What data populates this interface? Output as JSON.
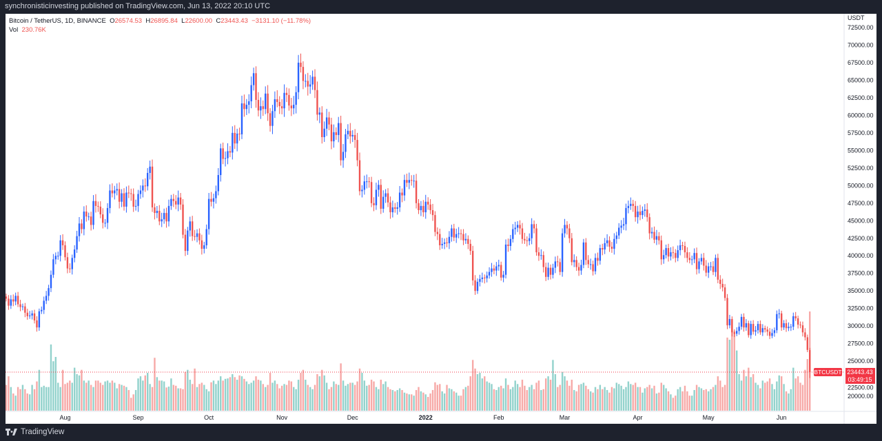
{
  "header": {
    "published": "synchronisticinvesting published on TradingView.com, Jun 13, 2022 20:10 UTC"
  },
  "legend": {
    "symbol": "Bitcoin / TetherUS, 1D, BINANCE",
    "o_label": "O",
    "open": "26574.53",
    "h_label": "H",
    "high": "26895.84",
    "l_label": "L",
    "low": "22600.00",
    "c_label": "C",
    "close": "23443.43",
    "change": "−3131.10 (−11.78%)",
    "vol_label": "Vol",
    "vol": "230.76K"
  },
  "price_axis": {
    "currency": "USDT"
  },
  "last_price": {
    "symbol": "BTCUSDT",
    "price": "23443.43",
    "countdown": "03:49:15"
  },
  "footer": {
    "brand": "TradingView"
  },
  "colors": {
    "up": "#2962ff",
    "down": "#ef5350",
    "vol_up": "#26a69a",
    "vol_down": "#ef5350",
    "last": "#f23645"
  },
  "chart_data": {
    "type": "candlestick",
    "title": "Bitcoin / TetherUS, 1D, BINANCE",
    "start_date": "2021-07-07",
    "end_date": "2022-06-13",
    "ylim": [
      17500,
      73500
    ],
    "yticks": [
      20000,
      22500,
      25000,
      27500,
      30000,
      32500,
      35000,
      37500,
      40000,
      42500,
      45000,
      47500,
      50000,
      52500,
      55000,
      57500,
      60000,
      62500,
      65000,
      67500,
      70000,
      72500
    ],
    "xticks": [
      {
        "label": "Aug",
        "index": 25
      },
      {
        "label": "Sep",
        "index": 56
      },
      {
        "label": "Oct",
        "index": 86
      },
      {
        "label": "Nov",
        "index": 117
      },
      {
        "label": "Dec",
        "index": 147
      },
      {
        "label": "2022",
        "index": 178
      },
      {
        "label": "Feb",
        "index": 209
      },
      {
        "label": "Mar",
        "index": 237
      },
      {
        "label": "Apr",
        "index": 268
      },
      {
        "label": "May",
        "index": 298
      },
      {
        "label": "Jun",
        "index": 329
      }
    ],
    "first_open_k": 34.2,
    "last_candle": {
      "open": 26574.53,
      "high": 26895.84,
      "low": 22600.0,
      "close": 23443.43
    },
    "close_k": [
      33.9,
      32.9,
      33.8,
      33.5,
      34.3,
      33.1,
      32.7,
      32.8,
      31.9,
      31.4,
      31.5,
      31.8,
      30.8,
      29.8,
      32.1,
      32.3,
      33.6,
      34.3,
      35.4,
      37.3,
      39.5,
      40.0,
      40.0,
      42.2,
      41.5,
      39.8,
      38.2,
      38.1,
      39.7,
      40.9,
      42.8,
      44.6,
      43.8,
      46.3,
      45.6,
      45.6,
      44.4,
      47.8,
      47.1,
      47.0,
      45.9,
      44.7,
      44.7,
      46.8,
      49.3,
      48.9,
      49.3,
      49.5,
      47.7,
      48.9,
      47.0,
      49.0,
      48.9,
      48.8,
      47.0,
      47.1,
      48.8,
      49.3,
      50.0,
      49.9,
      51.8,
      52.7,
      46.9,
      46.1,
      46.4,
      44.9,
      45.2,
      46.1,
      44.9,
      47.1,
      48.1,
      47.8,
      47.3,
      48.3,
      47.3,
      43.0,
      40.7,
      43.6,
      44.9,
      42.8,
      42.7,
      43.2,
      42.2,
      41.0,
      41.5,
      43.8,
      48.1,
      47.7,
      48.2,
      49.2,
      51.5,
      55.3,
      53.8,
      53.9,
      54.9,
      54.7,
      57.5,
      56.0,
      57.4,
      57.3,
      61.7,
      60.9,
      61.5,
      62.0,
      64.3,
      66.0,
      62.2,
      60.7,
      61.3,
      60.9,
      63.1,
      60.3,
      58.5,
      60.6,
      62.3,
      61.9,
      61.3,
      61.0,
      63.2,
      62.9,
      61.4,
      61.0,
      61.5,
      63.3,
      67.5,
      66.9,
      64.9,
      64.9,
      64.1,
      64.4,
      65.5,
      63.6,
      60.1,
      60.4,
      56.9,
      58.1,
      59.7,
      58.7,
      56.3,
      57.6,
      57.2,
      58.9,
      53.6,
      54.8,
      57.3,
      57.8,
      57.0,
      57.2,
      56.5,
      53.6,
      49.2,
      49.4,
      50.6,
      50.6,
      50.5,
      47.5,
      47.2,
      49.4,
      50.1,
      46.7,
      48.4,
      48.9,
      47.6,
      46.2,
      46.9,
      46.7,
      46.9,
      49.0,
      48.6,
      50.8,
      50.4,
      50.8,
      50.7,
      50.7,
      47.5,
      46.5,
      47.1,
      46.2,
      47.7,
      47.3,
      46.5,
      45.8,
      43.4,
      43.1,
      41.5,
      41.7,
      41.9,
      41.8,
      42.7,
      43.9,
      42.6,
      43.1,
      43.2,
      43.1,
      42.2,
      42.4,
      41.7,
      40.7,
      36.5,
      35.0,
      36.3,
      36.7,
      36.9,
      36.8,
      37.2,
      37.7,
      38.2,
      37.9,
      38.5,
      38.7,
      36.9,
      37.3,
      41.6,
      41.4,
      42.4,
      43.8,
      44.0,
      44.4,
      43.9,
      42.4,
      42.2,
      42.1,
      42.5,
      44.5,
      43.9,
      40.5,
      40.0,
      40.1,
      38.4,
      37.0,
      38.3,
      37.3,
      38.3,
      39.2,
      39.1,
      37.7,
      43.2,
      44.4,
      43.9,
      42.5,
      39.1,
      39.4,
      38.4,
      37.9,
      38.7,
      41.9,
      39.4,
      38.8,
      38.8,
      37.8,
      39.7,
      39.3,
      41.1,
      40.9,
      41.8,
      42.2,
      41.3,
      41.0,
      42.4,
      42.9,
      44.0,
      44.3,
      44.5,
      46.8,
      47.1,
      47.4,
      47.1,
      45.5,
      46.3,
      45.8,
      46.4,
      46.6,
      45.5,
      43.2,
      43.4,
      42.3,
      42.8,
      42.2,
      39.5,
      40.1,
      41.1,
      39.9,
      40.5,
      40.4,
      39.7,
      40.8,
      41.5,
      41.4,
      40.5,
      39.7,
      39.4,
      39.5,
      40.4,
      38.1,
      39.2,
      39.7,
      38.6,
      37.6,
      38.5,
      38.5,
      37.7,
      39.7,
      36.6,
      36.0,
      35.5,
      34.0,
      30.1,
      31.0,
      29.1,
      28.9,
      29.3,
      29.9,
      31.3,
      29.8,
      30.4,
      28.7,
      30.3,
      29.2,
      29.4,
      30.3,
      29.1,
      29.7,
      29.5,
      29.2,
      28.6,
      29.0,
      29.4,
      31.7,
      31.8,
      29.8,
      30.4,
      29.7,
      29.9,
      29.9,
      31.4,
      31.1,
      30.2,
      30.1,
      29.1,
      28.4,
      26.6,
      23.4
    ],
    "volume_k": [
      60,
      80,
      55,
      40,
      35,
      55,
      50,
      60,
      50,
      40,
      38,
      60,
      50,
      68,
      95,
      55,
      58,
      55,
      55,
      154,
      115,
      125,
      65,
      55,
      95,
      62,
      65,
      70,
      65,
      100,
      85,
      82,
      95,
      70,
      65,
      70,
      60,
      55,
      70,
      70,
      65,
      60,
      68,
      70,
      65,
      70,
      65,
      52,
      62,
      60,
      58,
      55,
      48,
      30,
      38,
      48,
      75,
      80,
      70,
      82,
      88,
      62,
      55,
      123,
      78,
      70,
      70,
      68,
      54,
      56,
      75,
      60,
      58,
      52,
      52,
      50,
      90,
      95,
      72,
      62,
      98,
      55,
      62,
      65,
      60,
      50,
      45,
      66,
      70,
      62,
      70,
      80,
      70,
      74,
      75,
      78,
      85,
      78,
      72,
      82,
      80,
      74,
      68,
      62,
      65,
      70,
      80,
      72,
      70,
      62,
      55,
      60,
      88,
      65,
      70,
      62,
      52,
      58,
      62,
      60,
      70,
      68,
      55,
      50,
      72,
      88,
      95,
      72,
      60,
      55,
      50,
      60,
      85,
      80,
      95,
      82,
      65,
      50,
      55,
      68,
      62,
      60,
      110,
      70,
      58,
      62,
      65,
      65,
      60,
      68,
      98,
      88,
      70,
      58,
      60,
      72,
      68,
      55,
      50,
      72,
      62,
      68,
      55,
      50,
      48,
      45,
      48,
      52,
      48,
      42,
      40,
      38,
      38,
      35,
      48,
      55,
      45,
      42,
      38,
      32,
      40,
      48,
      66,
      60,
      62,
      45,
      40,
      60,
      52,
      50,
      45,
      42,
      35,
      35,
      50,
      55,
      58,
      80,
      118,
      98,
      85,
      88,
      75,
      80,
      68,
      65,
      62,
      50,
      48,
      55,
      58,
      52,
      75,
      60,
      50,
      55,
      70,
      62,
      55,
      72,
      58,
      48,
      55,
      60,
      50,
      65,
      70,
      48,
      50,
      75,
      80,
      72,
      118,
      85,
      55,
      60,
      90,
      80,
      70,
      58,
      72,
      48,
      45,
      60,
      62,
      65,
      58,
      50,
      45,
      42,
      55,
      50,
      60,
      50,
      55,
      48,
      42,
      55,
      52,
      65,
      62,
      58,
      50,
      55,
      68,
      62,
      60,
      65,
      55,
      55,
      42,
      52,
      55,
      60,
      52,
      58,
      40,
      42,
      65,
      60,
      52,
      45,
      38,
      30,
      35,
      50,
      55,
      45,
      58,
      45,
      35,
      35,
      48,
      60,
      55,
      52,
      48,
      50,
      45,
      50,
      55,
      60,
      80,
      70,
      55,
      60,
      170,
      165,
      210,
      185,
      140,
      85,
      70,
      95,
      80,
      100,
      78,
      85,
      65,
      60,
      52,
      70,
      65,
      68,
      75,
      62,
      50,
      68,
      82,
      80,
      62,
      45,
      40,
      50,
      100,
      75,
      80,
      65,
      60,
      95,
      120,
      230.76
    ]
  }
}
